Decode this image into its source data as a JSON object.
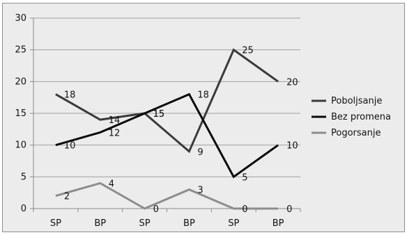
{
  "chart_data": {
    "type": "line",
    "categories": [
      "SP",
      "BP",
      "SP",
      "BP",
      "SP",
      "BP"
    ],
    "series": [
      {
        "name": "Poboljsanje",
        "values": [
          18,
          14,
          15,
          9,
          25,
          20
        ],
        "color": "#3a3a3a"
      },
      {
        "name": "Bez promena",
        "values": [
          10,
          12,
          15,
          18,
          5,
          10
        ],
        "color": "#0a0a0a"
      },
      {
        "name": "Pogorsanje",
        "values": [
          2,
          4,
          0,
          3,
          0,
          0
        ],
        "color": "#8c8c8c"
      }
    ],
    "ylim": [
      0,
      30
    ],
    "yticks": [
      0,
      5,
      10,
      15,
      20,
      25,
      30
    ],
    "grid": true,
    "legend": "right"
  }
}
